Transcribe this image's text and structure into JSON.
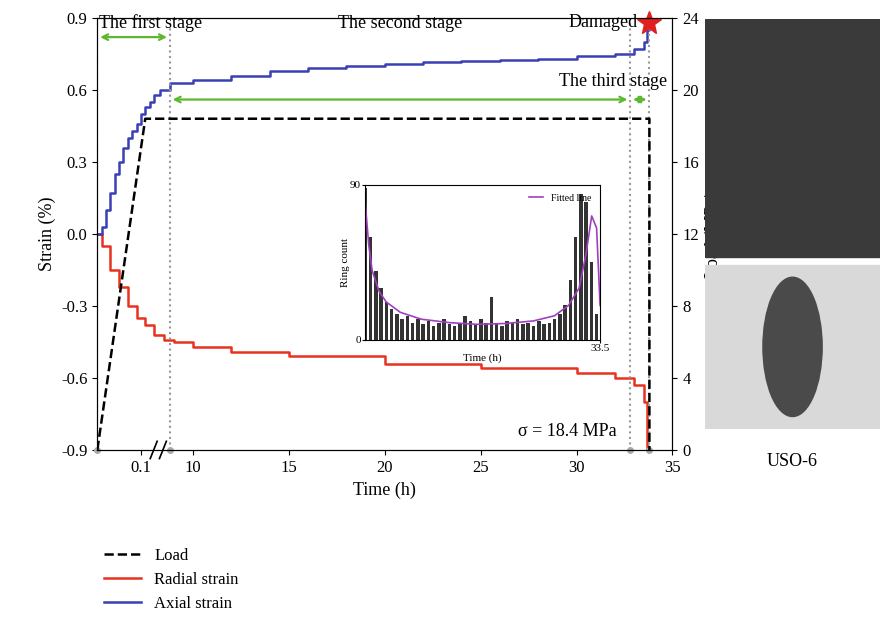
{
  "chart_data": {
    "type": "line",
    "x_label": "Time (h)",
    "y_label": "Strain (%)",
    "y2_label": "Load (MPa)",
    "xlim": [
      0,
      35
    ],
    "x_break": [
      0.14,
      8.2
    ],
    "xticks": [
      0.1,
      10,
      15,
      20,
      25,
      30,
      35
    ],
    "ylim": [
      -0.9,
      0.9
    ],
    "yticks": [
      -0.9,
      -0.6,
      -0.3,
      0.0,
      0.3,
      0.6,
      0.9
    ],
    "y2lim": [
      0,
      24
    ],
    "y2ticks": [
      0,
      4,
      8,
      12,
      16,
      20,
      24
    ],
    "legend": "lower left",
    "series": [
      {
        "name": "Load",
        "color": "#000000",
        "line_style": "dashed",
        "axis": "y2",
        "x": [
          0,
          0.11,
          33.8,
          33.8
        ],
        "values": [
          0,
          18.4,
          18.4,
          0
        ]
      },
      {
        "name": "Radial strain",
        "color": "#e8321e",
        "line_style": "solid",
        "x": [
          0,
          0.01,
          0.03,
          0.05,
          0.07,
          0.09,
          0.11,
          0.13,
          8.5,
          9,
          10,
          12,
          15,
          20,
          25,
          30,
          32,
          33,
          33.5,
          33.7
        ],
        "values": [
          0.0,
          -0.05,
          -0.15,
          -0.22,
          -0.3,
          -0.35,
          -0.38,
          -0.42,
          -0.44,
          -0.45,
          -0.47,
          -0.49,
          -0.51,
          -0.54,
          -0.56,
          -0.58,
          -0.6,
          -0.63,
          -0.7,
          -0.9
        ]
      },
      {
        "name": "Axial strain",
        "color": "#3a3fb5",
        "line_style": "solid",
        "x": [
          0,
          0.01,
          0.02,
          0.03,
          0.04,
          0.05,
          0.06,
          0.07,
          0.08,
          0.09,
          0.1,
          0.11,
          0.12,
          0.13,
          8.3,
          8.8,
          10,
          12,
          14,
          16,
          18,
          20,
          22,
          24,
          26,
          28,
          30,
          32,
          33,
          33.5,
          33.7,
          33.8
        ],
        "values": [
          0.0,
          0.03,
          0.1,
          0.17,
          0.25,
          0.3,
          0.36,
          0.4,
          0.43,
          0.46,
          0.5,
          0.53,
          0.55,
          0.58,
          0.6,
          0.63,
          0.64,
          0.66,
          0.68,
          0.69,
          0.7,
          0.71,
          0.715,
          0.72,
          0.725,
          0.73,
          0.74,
          0.75,
          0.77,
          0.8,
          0.85,
          0.9
        ]
      }
    ],
    "stages": [
      {
        "label": "The first stage",
        "start": 0,
        "end": 8.8
      },
      {
        "label": "The second stage",
        "start": 8.8,
        "end": 32.8
      },
      {
        "label": "The third stage",
        "start": 32.8,
        "end": 33.8
      }
    ],
    "damage": {
      "label": "Damaged",
      "x": 33.8,
      "y": 0.88,
      "color": "#e02020",
      "marker": "star"
    },
    "annotation": "σ = 18.4 MPa",
    "specimen_label": "USO-6",
    "inset": {
      "type": "bar",
      "x_label": "Time (h)",
      "y_label": "Ring count",
      "xlim": [
        0,
        33.5
      ],
      "xticks": [
        33.5
      ],
      "ylim": [
        0,
        90
      ],
      "yticks": [
        0,
        90
      ],
      "color": "#333333",
      "legend": "upper right",
      "x": [
        0,
        0.75,
        1.5,
        2.25,
        3,
        3.75,
        4.5,
        5.25,
        6,
        6.75,
        7.5,
        8.25,
        9,
        9.75,
        10.5,
        11.25,
        12,
        12.75,
        13.5,
        14.25,
        15,
        15.75,
        16.5,
        17.25,
        18,
        18.75,
        19.5,
        20.25,
        21,
        21.75,
        22.5,
        23.25,
        24,
        24.75,
        25.5,
        26.25,
        27,
        27.75,
        28.5,
        29.25,
        30,
        30.75,
        31.5,
        32.25,
        33
      ],
      "values": [
        88,
        60,
        40,
        30,
        22,
        18,
        15,
        12,
        14,
        10,
        12,
        9,
        11,
        8,
        10,
        12,
        9,
        8,
        10,
        14,
        11,
        9,
        12,
        10,
        25,
        9,
        8,
        11,
        10,
        12,
        9,
        10,
        8,
        11,
        9,
        10,
        12,
        15,
        20,
        35,
        60,
        85,
        80,
        45,
        15
      ],
      "series": [
        {
          "name": "Fitted line",
          "type": "line",
          "color": "#a040c0",
          "x": [
            0,
            0.5,
            1,
            2,
            3,
            5,
            8,
            12,
            16,
            20,
            24,
            27,
            29,
            30.5,
            31.5,
            32.3,
            33,
            33.5
          ],
          "values": [
            80,
            55,
            40,
            28,
            22,
            16,
            12,
            10,
            9,
            9.5,
            11,
            14,
            20,
            30,
            50,
            72,
            65,
            20
          ]
        }
      ]
    }
  }
}
